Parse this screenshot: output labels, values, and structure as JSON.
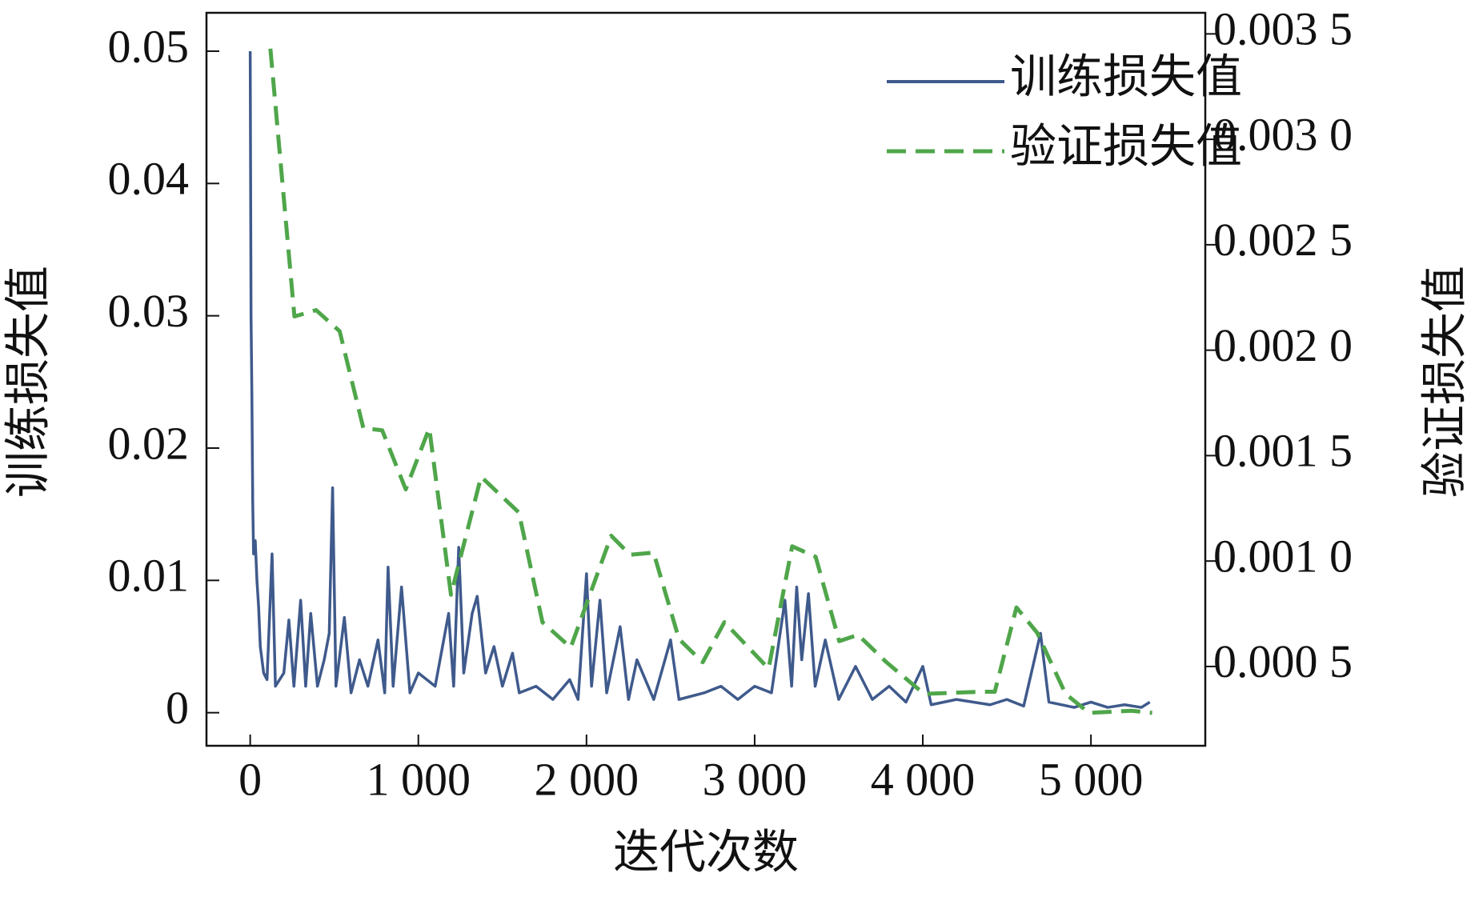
{
  "chart_data": {
    "type": "line",
    "xlabel": "迭代次数",
    "ylabel": "训练损失值",
    "y2label": "验证损失值",
    "xlim": [
      -260,
      5680
    ],
    "ylim": [
      -0.0025,
      0.0529
    ],
    "y2lim": [
      0.000124,
      0.0036
    ],
    "xticks": [
      0,
      {
        "value": 1000,
        "label": "1 000"
      },
      {
        "value": 2000,
        "label": "2 000"
      },
      {
        "value": 3000,
        "label": "3 000"
      },
      {
        "value": 4000,
        "label": "4 000"
      },
      {
        "value": 5000,
        "label": "5 000"
      }
    ],
    "yticks": [
      0,
      0.01,
      0.02,
      0.03,
      0.04,
      0.05
    ],
    "y2ticks": [
      {
        "value": 0.0005,
        "label": "0.000 5"
      },
      {
        "value": 0.001,
        "label": "0.001 0"
      },
      {
        "value": 0.0015,
        "label": "0.001 5"
      },
      {
        "value": 0.002,
        "label": "0.002 0"
      },
      {
        "value": 0.0025,
        "label": "0.002 5"
      },
      {
        "value": 0.003,
        "label": "0.003 0"
      },
      {
        "value": 0.0035,
        "label": "0.003 5"
      }
    ],
    "legend": "upper right",
    "series": [
      {
        "name": "训练损失值",
        "color": "#3f5a8c",
        "dash": false,
        "axis": "y",
        "x": [
          0,
          5,
          10,
          15,
          20,
          30,
          40,
          50,
          60,
          80,
          100,
          130,
          150,
          200,
          230,
          260,
          300,
          330,
          360,
          400,
          440,
          470,
          490,
          510,
          560,
          600,
          650,
          700,
          760,
          800,
          820,
          850,
          900,
          950,
          1000,
          1100,
          1180,
          1210,
          1240,
          1270,
          1320,
          1350,
          1400,
          1450,
          1500,
          1560,
          1600,
          1700,
          1800,
          1900,
          1950,
          2000,
          2030,
          2080,
          2120,
          2200,
          2250,
          2300,
          2400,
          2500,
          2550,
          2700,
          2800,
          2900,
          3000,
          3100,
          3180,
          3220,
          3250,
          3280,
          3320,
          3360,
          3420,
          3500,
          3600,
          3700,
          3800,
          3900,
          4000,
          4050,
          4200,
          4400,
          4500,
          4600,
          4700,
          4750,
          4900,
          5000,
          5100,
          5200,
          5300,
          5350
        ],
        "values": [
          0.05,
          0.03,
          0.024,
          0.016,
          0.012,
          0.013,
          0.01,
          0.008,
          0.005,
          0.003,
          0.0025,
          0.012,
          0.002,
          0.003,
          0.007,
          0.002,
          0.0085,
          0.002,
          0.0075,
          0.002,
          0.004,
          0.006,
          0.017,
          0.002,
          0.0072,
          0.0015,
          0.004,
          0.002,
          0.0055,
          0.0015,
          0.011,
          0.002,
          0.0095,
          0.0015,
          0.003,
          0.002,
          0.0075,
          0.002,
          0.0125,
          0.003,
          0.0075,
          0.0088,
          0.003,
          0.005,
          0.002,
          0.0045,
          0.0015,
          0.002,
          0.001,
          0.0025,
          0.001,
          0.0105,
          0.002,
          0.0085,
          0.0015,
          0.0065,
          0.001,
          0.004,
          0.001,
          0.0055,
          0.001,
          0.0015,
          0.002,
          0.001,
          0.002,
          0.0015,
          0.0085,
          0.002,
          0.0095,
          0.004,
          0.009,
          0.002,
          0.0055,
          0.001,
          0.0035,
          0.001,
          0.002,
          0.0008,
          0.0035,
          0.0006,
          0.001,
          0.0006,
          0.001,
          0.0005,
          0.006,
          0.0008,
          0.0004,
          0.0008,
          0.0004,
          0.0006,
          0.0004,
          0.0008
        ]
      },
      {
        "name": "验证损失值",
        "color": "#4fa64a",
        "dash": true,
        "axis": "y2",
        "x": [
          120,
          263,
          392,
          532,
          673,
          785,
          925,
          1065,
          1194,
          1373,
          1598,
          1738,
          1906,
          2147,
          2259,
          2399,
          2550,
          2691,
          2820,
          3083,
          3223,
          3363,
          3503,
          3615,
          3784,
          4008,
          4344,
          4428,
          4557,
          4680,
          4849,
          4989,
          5241,
          5364
        ],
        "values": [
          0.00343,
          0.00216,
          0.00219,
          0.00209,
          0.00163,
          0.00162,
          0.00134,
          0.00163,
          0.00084,
          0.0014,
          0.00123,
          0.00071,
          0.00059,
          0.00112,
          0.00103,
          0.00104,
          0.00063,
          0.00052,
          0.00071,
          0.00049,
          0.00107,
          0.00102,
          0.00062,
          0.00065,
          0.00052,
          0.00037,
          0.00038,
          0.00038,
          0.00078,
          0.00066,
          0.00037,
          0.00028,
          0.00029,
          0.00028
        ]
      }
    ]
  }
}
